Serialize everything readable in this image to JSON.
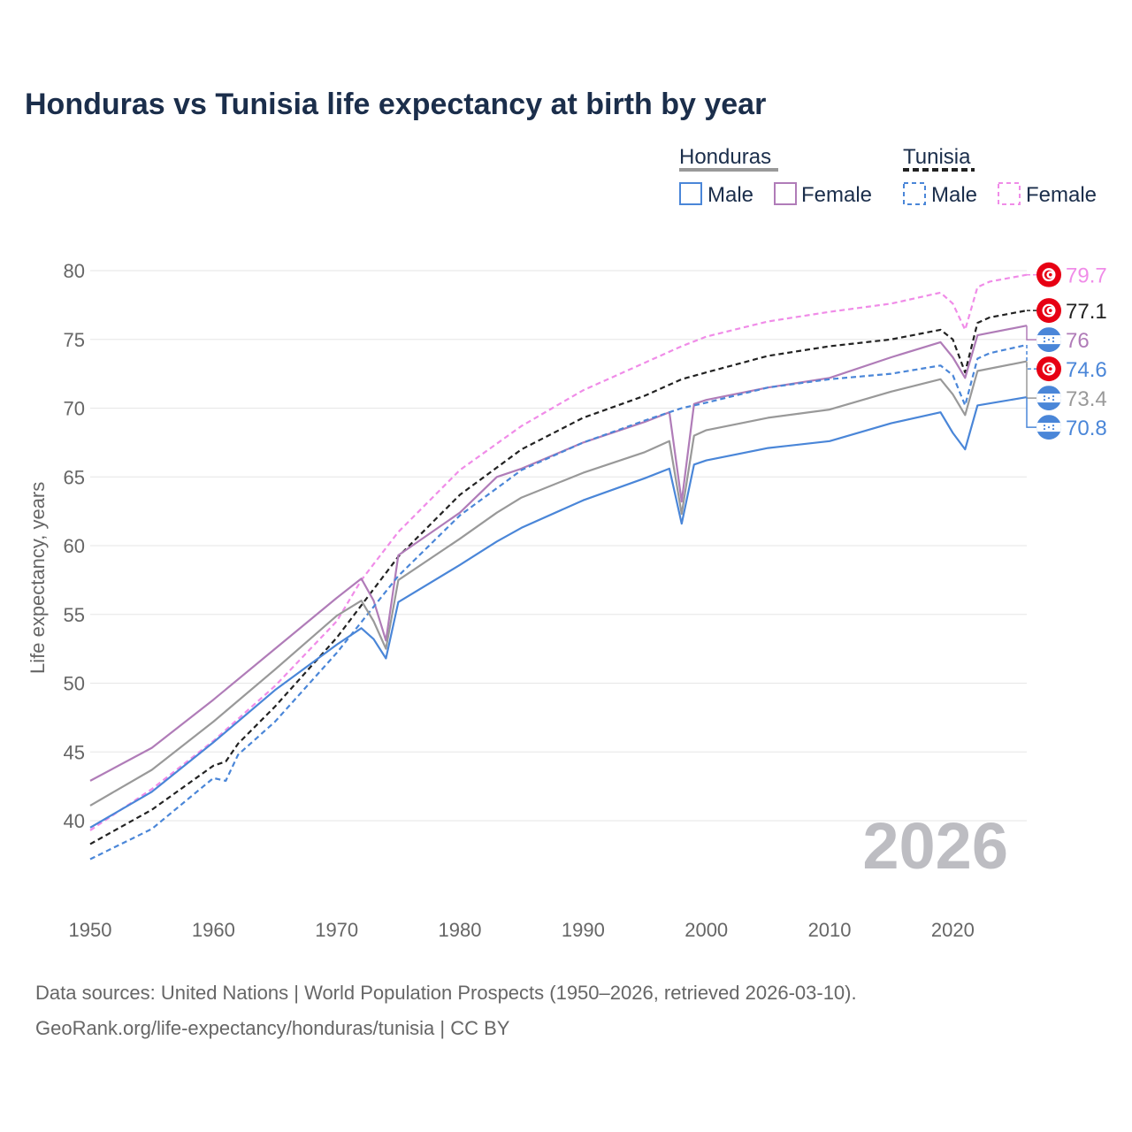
{
  "chart_data": {
    "type": "line",
    "title": "Honduras vs Tunisia life expectancy at birth by year",
    "ylabel": "Life expectancy, years",
    "xlabel": "",
    "xlim": [
      1950,
      2026
    ],
    "ylim": [
      35,
      82
    ],
    "yticks": [
      40,
      45,
      50,
      55,
      60,
      65,
      70,
      75,
      80
    ],
    "xticks": [
      1950,
      1960,
      1970,
      1980,
      1990,
      2000,
      2010,
      2020
    ],
    "current_year": "2026",
    "legend": {
      "groups": [
        {
          "name": "Honduras",
          "color": "#999999",
          "style": "solid"
        },
        {
          "name": "Tunisia",
          "color": "#222222",
          "style": "dashed"
        }
      ],
      "items": [
        {
          "label": "Male",
          "color": "#4a86d8",
          "style": "solid"
        },
        {
          "label": "Female",
          "color": "#b07cb8",
          "style": "solid"
        },
        {
          "label": "Male",
          "color": "#4a86d8",
          "style": "dashed"
        },
        {
          "label": "Female",
          "color": "#f08ce8",
          "style": "dashed"
        }
      ]
    },
    "series": [
      {
        "name": "Tunisia Female",
        "color": "#f08ce8",
        "dash": true,
        "flag": "tunisia",
        "end_label": "79.7",
        "points": [
          [
            1950,
            39.3
          ],
          [
            1955,
            42.3
          ],
          [
            1960,
            45.8
          ],
          [
            1965,
            49.8
          ],
          [
            1970,
            54.5
          ],
          [
            1972,
            57.5
          ],
          [
            1975,
            61.0
          ],
          [
            1980,
            65.5
          ],
          [
            1985,
            68.7
          ],
          [
            1990,
            71.3
          ],
          [
            1995,
            73.3
          ],
          [
            1998,
            74.5
          ],
          [
            2000,
            75.2
          ],
          [
            2005,
            76.3
          ],
          [
            2010,
            77.0
          ],
          [
            2015,
            77.6
          ],
          [
            2019,
            78.4
          ],
          [
            2020,
            77.6
          ],
          [
            2021,
            75.7
          ],
          [
            2022,
            78.8
          ],
          [
            2023,
            79.2
          ],
          [
            2026,
            79.7
          ]
        ]
      },
      {
        "name": "Tunisia Both",
        "color": "#222222",
        "dash": true,
        "flag": "tunisia",
        "end_label": "77.1",
        "points": [
          [
            1950,
            38.3
          ],
          [
            1955,
            40.8
          ],
          [
            1960,
            44.0
          ],
          [
            1961,
            44.3
          ],
          [
            1962,
            45.6
          ],
          [
            1965,
            48.3
          ],
          [
            1970,
            53.3
          ],
          [
            1975,
            59.2
          ],
          [
            1980,
            63.7
          ],
          [
            1985,
            67.0
          ],
          [
            1990,
            69.3
          ],
          [
            1995,
            70.9
          ],
          [
            1998,
            72.1
          ],
          [
            2000,
            72.6
          ],
          [
            2005,
            73.8
          ],
          [
            2010,
            74.5
          ],
          [
            2015,
            75.0
          ],
          [
            2019,
            75.7
          ],
          [
            2020,
            75.0
          ],
          [
            2021,
            72.6
          ],
          [
            2022,
            76.2
          ],
          [
            2023,
            76.6
          ],
          [
            2026,
            77.1
          ]
        ]
      },
      {
        "name": "Honduras Female",
        "color": "#b07cb8",
        "dash": false,
        "flag": "honduras",
        "end_label": "76",
        "points": [
          [
            1950,
            42.9
          ],
          [
            1955,
            45.3
          ],
          [
            1960,
            48.8
          ],
          [
            1965,
            52.5
          ],
          [
            1970,
            56.2
          ],
          [
            1972,
            57.6
          ],
          [
            1973,
            56.0
          ],
          [
            1974,
            53.1
          ],
          [
            1975,
            59.3
          ],
          [
            1980,
            62.4
          ],
          [
            1983,
            65.0
          ],
          [
            1985,
            65.6
          ],
          [
            1990,
            67.5
          ],
          [
            1995,
            69.0
          ],
          [
            1997,
            69.7
          ],
          [
            1998,
            63.2
          ],
          [
            1999,
            70.3
          ],
          [
            2000,
            70.6
          ],
          [
            2005,
            71.5
          ],
          [
            2010,
            72.2
          ],
          [
            2015,
            73.7
          ],
          [
            2019,
            74.8
          ],
          [
            2020,
            73.7
          ],
          [
            2021,
            72.2
          ],
          [
            2022,
            75.3
          ],
          [
            2026,
            76.0
          ]
        ]
      },
      {
        "name": "Tunisia Male",
        "color": "#4a86d8",
        "dash": true,
        "flag": "tunisia",
        "end_label": "74.6",
        "points": [
          [
            1950,
            37.2
          ],
          [
            1955,
            39.4
          ],
          [
            1960,
            43.1
          ],
          [
            1961,
            42.9
          ],
          [
            1962,
            44.8
          ],
          [
            1965,
            47.2
          ],
          [
            1970,
            52.2
          ],
          [
            1975,
            57.8
          ],
          [
            1980,
            62.2
          ],
          [
            1985,
            65.5
          ],
          [
            1990,
            67.5
          ],
          [
            1995,
            69.1
          ],
          [
            1998,
            70.0
          ],
          [
            2000,
            70.4
          ],
          [
            2005,
            71.5
          ],
          [
            2010,
            72.1
          ],
          [
            2015,
            72.5
          ],
          [
            2019,
            73.1
          ],
          [
            2020,
            72.4
          ],
          [
            2021,
            70.2
          ],
          [
            2022,
            73.6
          ],
          [
            2023,
            74.0
          ],
          [
            2026,
            74.6
          ]
        ]
      },
      {
        "name": "Honduras Both",
        "color": "#999999",
        "dash": false,
        "flag": "honduras",
        "end_label": "73.4",
        "points": [
          [
            1950,
            41.1
          ],
          [
            1955,
            43.7
          ],
          [
            1960,
            47.2
          ],
          [
            1965,
            51.0
          ],
          [
            1970,
            54.9
          ],
          [
            1972,
            56.0
          ],
          [
            1973,
            54.5
          ],
          [
            1974,
            52.5
          ],
          [
            1975,
            57.5
          ],
          [
            1980,
            60.5
          ],
          [
            1983,
            62.4
          ],
          [
            1985,
            63.5
          ],
          [
            1990,
            65.3
          ],
          [
            1995,
            66.8
          ],
          [
            1997,
            67.6
          ],
          [
            1998,
            62.3
          ],
          [
            1999,
            68.0
          ],
          [
            2000,
            68.4
          ],
          [
            2005,
            69.3
          ],
          [
            2010,
            69.9
          ],
          [
            2015,
            71.2
          ],
          [
            2019,
            72.1
          ],
          [
            2020,
            71.0
          ],
          [
            2021,
            69.5
          ],
          [
            2022,
            72.7
          ],
          [
            2026,
            73.4
          ]
        ]
      },
      {
        "name": "Honduras Male",
        "color": "#4a86d8",
        "dash": false,
        "flag": "honduras",
        "end_label": "70.8",
        "points": [
          [
            1950,
            39.5
          ],
          [
            1955,
            42.1
          ],
          [
            1960,
            45.7
          ],
          [
            1965,
            49.5
          ],
          [
            1970,
            52.8
          ],
          [
            1972,
            54.0
          ],
          [
            1973,
            53.2
          ],
          [
            1974,
            51.8
          ],
          [
            1975,
            55.9
          ],
          [
            1980,
            58.6
          ],
          [
            1983,
            60.3
          ],
          [
            1985,
            61.3
          ],
          [
            1990,
            63.3
          ],
          [
            1995,
            64.9
          ],
          [
            1997,
            65.6
          ],
          [
            1998,
            61.6
          ],
          [
            1999,
            65.9
          ],
          [
            2000,
            66.2
          ],
          [
            2005,
            67.1
          ],
          [
            2010,
            67.6
          ],
          [
            2015,
            68.9
          ],
          [
            2019,
            69.7
          ],
          [
            2020,
            68.2
          ],
          [
            2021,
            67.0
          ],
          [
            2022,
            70.2
          ],
          [
            2026,
            70.8
          ]
        ]
      }
    ]
  },
  "footer": {
    "line1": "Data sources: United Nations | World Population Prospects (1950–2026, retrieved 2026-03-10).",
    "line2": "GeoRank.org/life-expectancy/honduras/tunisia | CC BY"
  }
}
